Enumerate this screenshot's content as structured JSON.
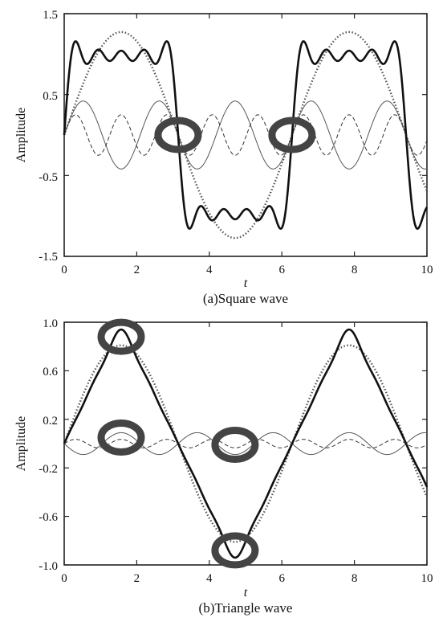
{
  "chart_data": [
    {
      "type": "line",
      "title": "",
      "caption": "(a)Square wave",
      "xlabel": "t",
      "ylabel": "Amplitude",
      "xlim": [
        0,
        10
      ],
      "ylim": [
        -1.5,
        1.5
      ],
      "xticks": [
        "0",
        "2",
        "4",
        "6",
        "8",
        "10"
      ],
      "yticks": [
        "1.5",
        "0.5",
        "-0.5",
        "-1.5"
      ],
      "grid": false,
      "series": [
        {
          "style": "solid-thick",
          "function": "square_sum_1_3_5",
          "sample": {
            "x": [
              0,
              0.4,
              1.57,
              2.7,
              3.14,
              3.6,
              4.71,
              5.9,
              6.28,
              6.7,
              7.85,
              9.0,
              9.42,
              9.9
            ],
            "y": [
              0,
              1.15,
              0.9,
              1.18,
              0,
              -1.15,
              -1.05,
              -1.18,
              0,
              1.15,
              0.9,
              1.18,
              0,
              -1.1
            ]
          }
        },
        {
          "style": "dotted",
          "function": "fundamental",
          "sample": {
            "x": [
              0,
              1.57,
              3.14,
              4.71,
              6.28,
              7.85,
              9.42,
              10
            ],
            "y": [
              0,
              1.27,
              0,
              -1.27,
              0,
              1.27,
              0,
              -0.7
            ]
          }
        },
        {
          "style": "solid-thin",
          "function": "third_harmonic",
          "amplitude": 0.42
        },
        {
          "style": "dashed-thin",
          "function": "fifth_harmonic",
          "amplitude": 0.25
        }
      ],
      "annotations": [
        {
          "type": "ring",
          "x": 3.14,
          "y": 0
        },
        {
          "type": "ring",
          "x": 6.28,
          "y": 0
        }
      ]
    },
    {
      "type": "line",
      "title": "",
      "caption": "(b)Triangle wave",
      "xlabel": "t",
      "ylabel": "Amplitude",
      "xlim": [
        0,
        10
      ],
      "ylim": [
        -1.0,
        1.0
      ],
      "xticks": [
        "0",
        "2",
        "4",
        "6",
        "8",
        "10"
      ],
      "yticks": [
        "1.0",
        "0.6",
        "0.2",
        "-0.2",
        "-0.6",
        "-1.0"
      ],
      "grid": false,
      "series": [
        {
          "style": "solid-thick",
          "function": "triangle_wave",
          "sample": {
            "x": [
              0,
              1.57,
              3.14,
              4.71,
              6.28,
              7.85,
              9.42,
              10
            ],
            "y": [
              0,
              0.95,
              0,
              -0.95,
              0,
              0.95,
              0,
              -0.4
            ]
          }
        },
        {
          "style": "dotted",
          "function": "fundamental",
          "amplitude": 0.81
        },
        {
          "style": "solid-thin",
          "function": "third_harmonic",
          "amplitude": 0.09
        },
        {
          "style": "dashed-thin",
          "function": "fifth_harmonic",
          "amplitude": 0.035
        }
      ],
      "annotations": [
        {
          "type": "ring",
          "x": 1.57,
          "y": 0.88
        },
        {
          "type": "ring",
          "x": 1.57,
          "y": 0.05
        },
        {
          "type": "ring",
          "x": 4.71,
          "y": -0.01
        },
        {
          "type": "ring",
          "x": 4.71,
          "y": -0.88
        }
      ]
    }
  ]
}
